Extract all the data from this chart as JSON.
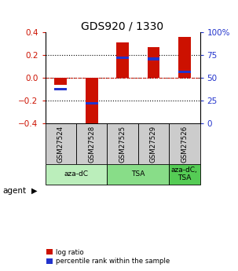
{
  "title": "GDS920 / 1330",
  "samples": [
    "GSM27524",
    "GSM27528",
    "GSM27525",
    "GSM27529",
    "GSM27526"
  ],
  "log_ratio": [
    -0.06,
    -0.42,
    0.31,
    0.27,
    0.36
  ],
  "percentile_rank": [
    38,
    22,
    72,
    71,
    57
  ],
  "agents": [
    {
      "label": "aza-dC",
      "start": 0,
      "end": 2,
      "color": "#bbeebb"
    },
    {
      "label": "TSA",
      "start": 2,
      "end": 4,
      "color": "#88dd88"
    },
    {
      "label": "aza-dC,\nTSA",
      "start": 4,
      "end": 5,
      "color": "#55cc55"
    }
  ],
  "ylim_left": [
    -0.4,
    0.4
  ],
  "ylim_right": [
    0,
    100
  ],
  "yticks_left": [
    -0.4,
    -0.2,
    0.0,
    0.2,
    0.4
  ],
  "yticks_right": [
    0,
    25,
    50,
    75,
    100
  ],
  "bar_color_red": "#cc1100",
  "bar_color_blue": "#2233cc",
  "bar_width": 0.4,
  "tick_label_color_left": "#cc1100",
  "tick_label_color_right": "#2233cc",
  "sample_box_color": "#cccccc",
  "legend_red_label": "log ratio",
  "legend_blue_label": "percentile rank within the sample",
  "agent_label": "agent",
  "blue_bar_height": 0.022
}
